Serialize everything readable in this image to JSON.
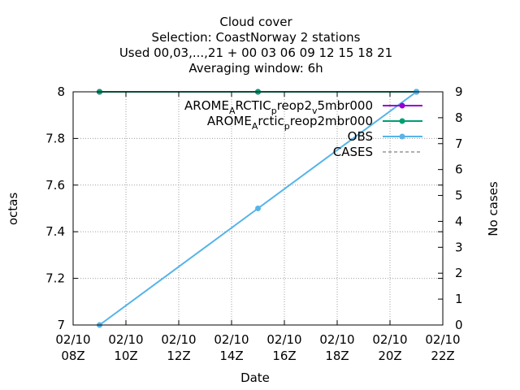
{
  "chart_data": {
    "type": "line",
    "title_lines": [
      "Cloud cover",
      "Selection: CoastNorway      2 stations",
      "Used  00,03,...,21  + 00 03 06 09 12 15 18 21",
      "Averaging window:  6h"
    ],
    "xlabel": "Date",
    "ylabel": "octas",
    "y2label": "No cases",
    "x_unit": "hour of 02/10",
    "xlim": [
      8,
      22
    ],
    "ylim": [
      7,
      8
    ],
    "y2lim": [
      0,
      9
    ],
    "x_ticks": [
      {
        "value": 8,
        "line1": "02/10",
        "line2": "08Z"
      },
      {
        "value": 10,
        "line1": "02/10",
        "line2": "10Z"
      },
      {
        "value": 12,
        "line1": "02/10",
        "line2": "12Z"
      },
      {
        "value": 14,
        "line1": "02/10",
        "line2": "14Z"
      },
      {
        "value": 16,
        "line1": "02/10",
        "line2": "16Z"
      },
      {
        "value": 18,
        "line1": "02/10",
        "line2": "18Z"
      },
      {
        "value": 20,
        "line1": "02/10",
        "line2": "20Z"
      },
      {
        "value": 22,
        "line1": "02/10",
        "line2": "22Z"
      }
    ],
    "y_ticks": [
      7,
      7.2,
      7.4,
      7.6,
      7.8,
      8
    ],
    "y2_ticks": [
      0,
      1,
      2,
      3,
      4,
      5,
      6,
      7,
      8,
      9
    ],
    "grid": true,
    "legend_position": "top-right",
    "series": [
      {
        "name_parts": [
          [
            "AROME",
            "n"
          ],
          [
            "A",
            "sub"
          ],
          [
            "RCTIC",
            "n"
          ],
          [
            "p",
            "sub"
          ],
          [
            "reop2",
            "n"
          ],
          [
            "v",
            "sub"
          ],
          [
            "5mbr000",
            "n"
          ]
        ],
        "color": "#9400d3",
        "marker": "circle",
        "axis": "y",
        "x": [
          9,
          15,
          21
        ],
        "y": [
          8,
          8,
          8
        ]
      },
      {
        "name_parts": [
          [
            "AROME",
            "n"
          ],
          [
            "A",
            "sub"
          ],
          [
            "rctic",
            "n"
          ],
          [
            "p",
            "sub"
          ],
          [
            "reop2mbr000",
            "n"
          ]
        ],
        "color": "#009e73",
        "marker": "circle",
        "axis": "y",
        "x": [
          9,
          15,
          21
        ],
        "y": [
          8,
          8,
          8
        ]
      },
      {
        "name_parts": [
          [
            "OBS",
            "n"
          ]
        ],
        "color": "#56b4e9",
        "marker": "circle",
        "axis": "y",
        "x": [
          9,
          15,
          21
        ],
        "y": [
          7,
          7.5,
          8
        ]
      },
      {
        "name_parts": [
          [
            "CASES",
            "n"
          ]
        ],
        "color": "#808080",
        "dash": true,
        "marker": "none",
        "axis": "y2",
        "x": [
          9,
          15,
          21
        ],
        "y": [
          9,
          9,
          9
        ]
      }
    ]
  }
}
